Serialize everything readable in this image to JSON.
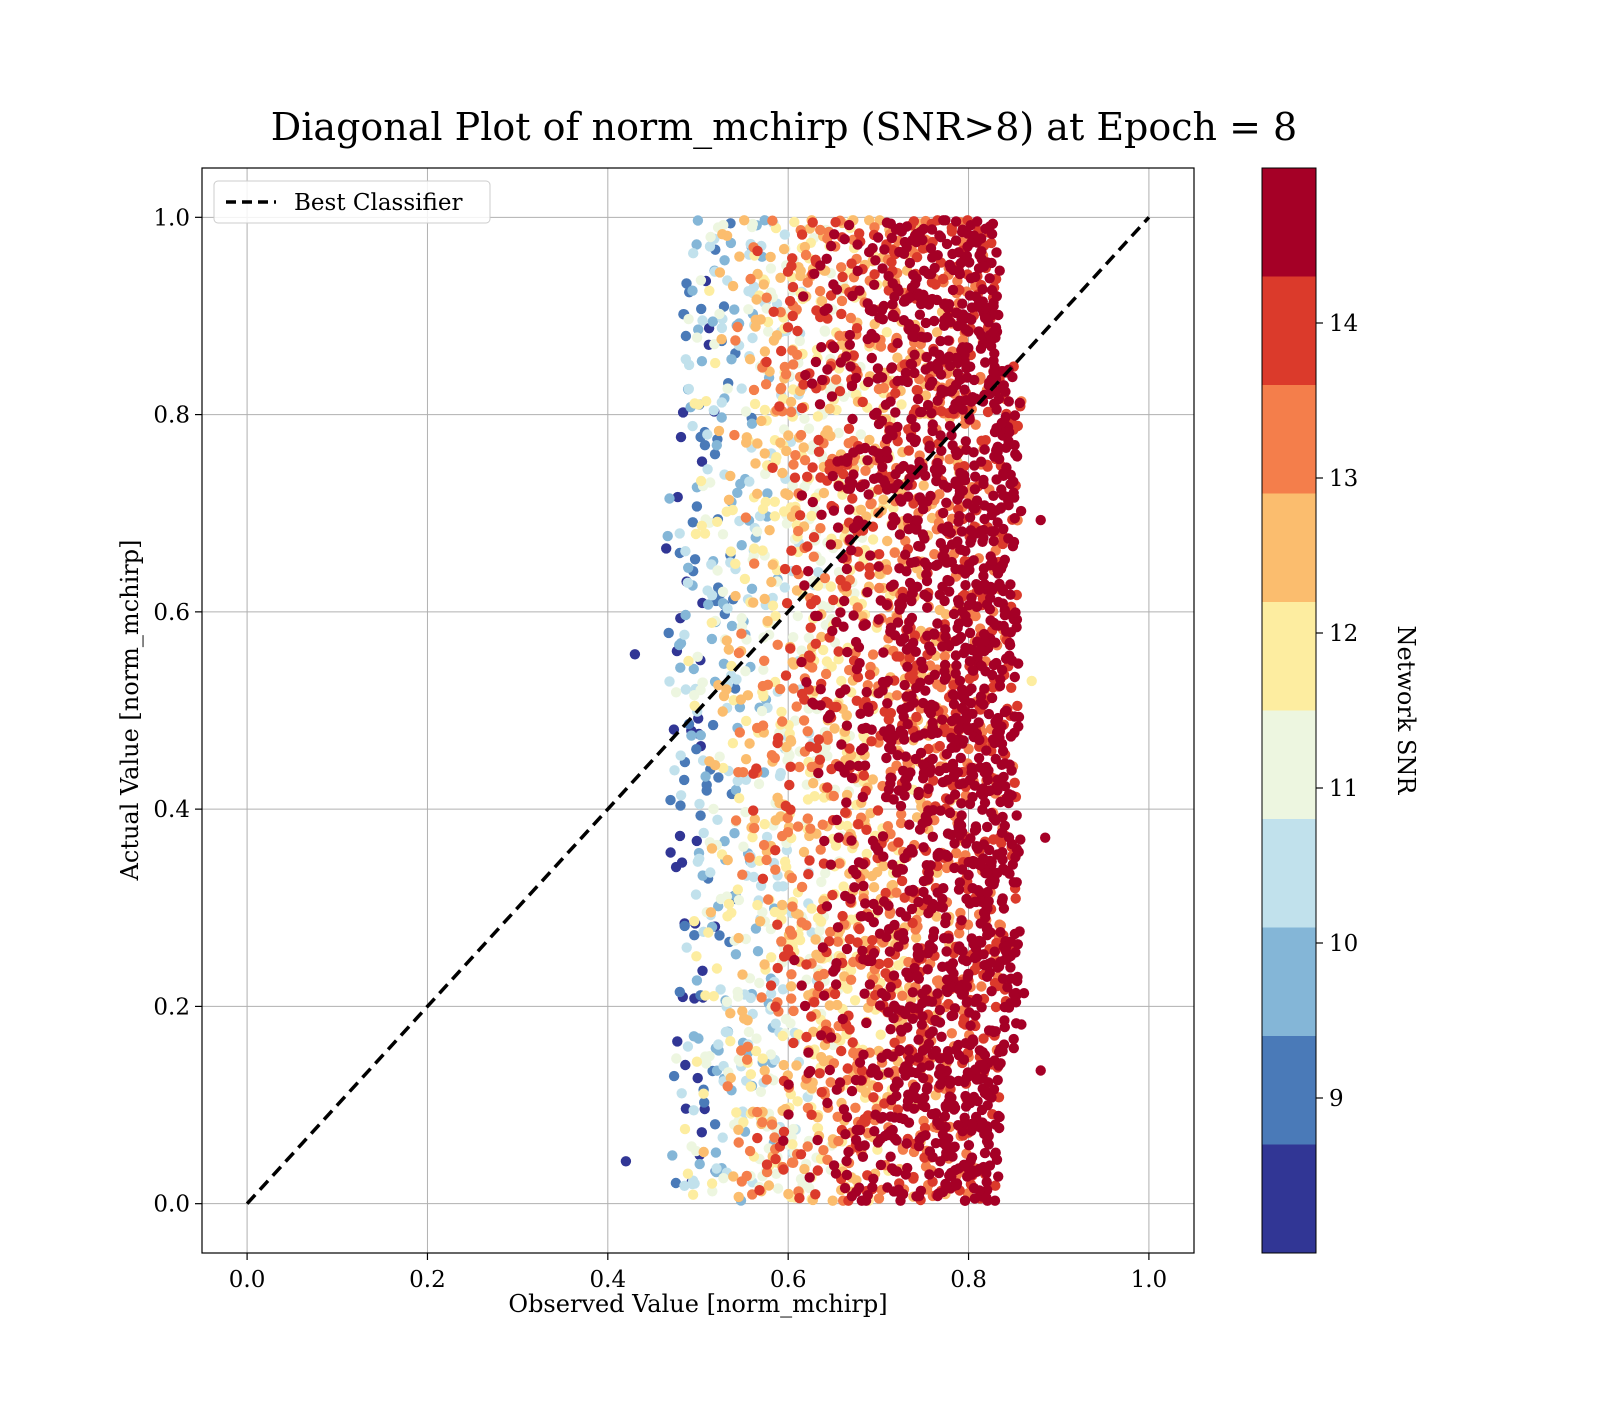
{
  "chart_data": {
    "type": "scatter",
    "title": "Diagonal Plot of norm_mchirp (SNR>8) at Epoch = 8",
    "xlabel": "Observed Value [norm_mchirp]",
    "ylabel": "Actual Value [norm_mchirp]",
    "xlim": [
      -0.05,
      1.05
    ],
    "ylim": [
      -0.05,
      1.05
    ],
    "xticks": [
      0.0,
      0.2,
      0.4,
      0.6,
      0.8,
      1.0
    ],
    "yticks": [
      0.0,
      0.2,
      0.4,
      0.6,
      0.8,
      1.0
    ],
    "xtick_labels": [
      "0.0",
      "0.2",
      "0.4",
      "0.6",
      "0.8",
      "1.0"
    ],
    "ytick_labels": [
      "0.0",
      "0.2",
      "0.4",
      "0.6",
      "0.8",
      "1.0"
    ],
    "grid": true,
    "legend": {
      "location": "upper-left",
      "entries": [
        {
          "label": "Best Classifier",
          "style": "dashed",
          "color": "#000000"
        }
      ]
    },
    "reference_line": {
      "label": "Best Classifier",
      "x": [
        0.0,
        1.0
      ],
      "y": [
        0.0,
        1.0
      ]
    },
    "colorbar": {
      "label": "Network SNR",
      "range": [
        8.0,
        15.0
      ],
      "ticks": [
        9,
        10,
        11,
        12,
        13,
        14
      ],
      "tick_labels": [
        "9",
        "10",
        "11",
        "12",
        "13",
        "14"
      ],
      "colors": [
        "#313695",
        "#4575b4",
        "#74add1",
        "#abd9e9",
        "#e0f3f8",
        "#ffffbf",
        "#fee090",
        "#fdae61",
        "#f46d43",
        "#d73027",
        "#a50026"
      ],
      "levels": [
        8.0,
        9.0,
        10.0,
        11.0,
        12.0,
        13.0,
        14.0,
        15.0
      ]
    },
    "scatter_summary": {
      "description_of_distribution": "dense cloud; observed x roughly 0.43 to 0.88, actual y 0 to 1; SNR increases with x",
      "x_range": [
        0.43,
        0.88
      ],
      "y_range": [
        0.0,
        1.0
      ],
      "color_by": "Network SNR"
    }
  }
}
